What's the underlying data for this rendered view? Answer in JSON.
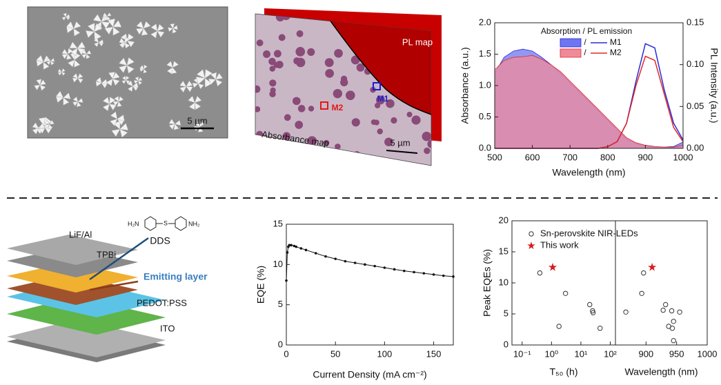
{
  "panels": {
    "sem": {
      "scale_bar": "5 µm"
    },
    "pl_map": {
      "top_label": "PL map",
      "bottom_label": "Absorbance map",
      "point_1": "M1",
      "point_2": "M2",
      "scale_bar": "5 µm"
    },
    "device": {
      "layers": [
        "LiF/Al",
        "TPBi",
        "Emitting layer",
        "PEDOT:PSS",
        "ITO"
      ],
      "molecule": "DDS",
      "amine_left": "H₂N",
      "amine_right": "NH₂"
    }
  },
  "chart_data": [
    {
      "type": "area-line",
      "xlabel": "Wavelength (nm)",
      "ylabel": "Absorbance (a.u.)",
      "y2label": "PL Intensity (a.u.)",
      "legend_title": "Absorption / PL emission",
      "legend_separator": "/",
      "x": [
        500,
        525,
        550,
        575,
        600,
        625,
        650,
        675,
        700,
        725,
        750,
        775,
        800,
        825,
        850,
        875,
        900,
        925,
        950,
        975,
        1000
      ],
      "series": [
        {
          "name": "M1",
          "color": "#2a2ad8",
          "fill": "#6f74f0",
          "absorption": [
            1.2,
            1.45,
            1.55,
            1.58,
            1.55,
            1.45,
            1.33,
            1.2,
            1.05,
            0.9,
            0.75,
            0.6,
            0.45,
            0.3,
            0.15,
            0.08,
            0.04,
            0.02,
            0.02,
            0.03,
            0.1
          ],
          "pl": [
            0,
            0,
            0,
            0,
            0,
            0,
            0,
            0,
            0,
            0,
            0,
            0,
            0.002,
            0.008,
            0.03,
            0.08,
            0.125,
            0.12,
            0.07,
            0.03,
            0.01
          ]
        },
        {
          "name": "M2",
          "color": "#e02828",
          "fill": "#f08a9a",
          "absorption": [
            1.25,
            1.4,
            1.45,
            1.46,
            1.48,
            1.42,
            1.33,
            1.22,
            1.07,
            0.92,
            0.77,
            0.62,
            0.47,
            0.32,
            0.17,
            0.09,
            0.05,
            0.03,
            0.02,
            0.02,
            0.05
          ],
          "pl": [
            0,
            0,
            0,
            0,
            0,
            0,
            0,
            0,
            0,
            0,
            0,
            0,
            0.002,
            0.008,
            0.03,
            0.075,
            0.11,
            0.105,
            0.065,
            0.025,
            0.008
          ]
        }
      ],
      "xlim": [
        500,
        1000
      ],
      "xticks": [
        500,
        600,
        700,
        800,
        900,
        1000
      ],
      "ylim": [
        0,
        2
      ],
      "yticks": [
        {
          "value": 0,
          "label": "0.0"
        },
        0.5,
        {
          "value": 1,
          "label": "1.0"
        },
        1.5,
        {
          "value": 2,
          "label": "2.0"
        }
      ],
      "y2lim": [
        0,
        0.15
      ],
      "y2ticks": [
        {
          "value": 0,
          "label": "0.00"
        },
        0.05,
        {
          "value": 0.1,
          "label": "0.10"
        },
        0.15
      ]
    },
    {
      "type": "line",
      "xlabel": "Current Density (mA cm⁻²)",
      "ylabel": "EQE (%)",
      "color": "#111111",
      "x": [
        0,
        1,
        2,
        3,
        5,
        8,
        10,
        15,
        20,
        30,
        40,
        50,
        60,
        70,
        80,
        90,
        100,
        110,
        120,
        130,
        140,
        150,
        160,
        170
      ],
      "values": [
        8,
        11.5,
        12.2,
        12.4,
        12.4,
        12.3,
        12.2,
        12.0,
        11.8,
        11.4,
        11.0,
        10.7,
        10.4,
        10.2,
        10.0,
        9.8,
        9.6,
        9.4,
        9.2,
        9.05,
        8.9,
        8.75,
        8.6,
        8.5
      ],
      "xlim": [
        0,
        170
      ],
      "xticks": [
        0,
        50,
        100,
        150
      ],
      "ylim": [
        0,
        15
      ],
      "yticks": [
        0,
        5,
        10,
        15
      ]
    },
    {
      "type": "scatter",
      "ylabel": "Peak EQEs (%)",
      "ylim": [
        0,
        20
      ],
      "yticks": [
        0,
        5,
        10,
        15,
        20
      ],
      "legend": [
        {
          "name": "Sn-perovskite NIR-LEDs",
          "color": "#333333"
        },
        {
          "name": "This work",
          "color": "#d41c1c"
        }
      ],
      "subplots": [
        {
          "xlabel": "T₅₀ (h)",
          "log_x": true,
          "xlim": [
            0.045,
            150
          ],
          "xticks": [
            {
              "value": 0.1,
              "label": "10⁻¹"
            },
            {
              "value": 1,
              "label": "10⁰"
            },
            {
              "value": 10,
              "label": "10¹"
            },
            {
              "value": 100,
              "label": "10²"
            }
          ],
          "series": [
            {
              "x": [
                0.4,
                1.8,
                3,
                20,
                25,
                26,
                45
              ],
              "values": [
                11.6,
                3.0,
                8.3,
                6.5,
                5.5,
                5.2,
                2.7
              ]
            },
            {
              "x": [
                1.1
              ],
              "values": [
                12.5
              ]
            }
          ]
        },
        {
          "xlabel": "Wavelength (nm)",
          "log_x": false,
          "xlim": [
            850,
            1000
          ],
          "xticks": [
            900,
            950,
            1000
          ],
          "series": [
            {
              "x": [
                867,
                893,
                896,
                932,
                928,
                942,
                937,
                945,
                943,
                955,
                945
              ],
              "values": [
                5.3,
                8.3,
                11.6,
                6.5,
                5.6,
                5.5,
                3.0,
                3.8,
                2.7,
                5.3,
                0.7
              ]
            },
            {
              "x": [
                910
              ],
              "values": [
                12.5
              ]
            }
          ]
        }
      ]
    }
  ]
}
